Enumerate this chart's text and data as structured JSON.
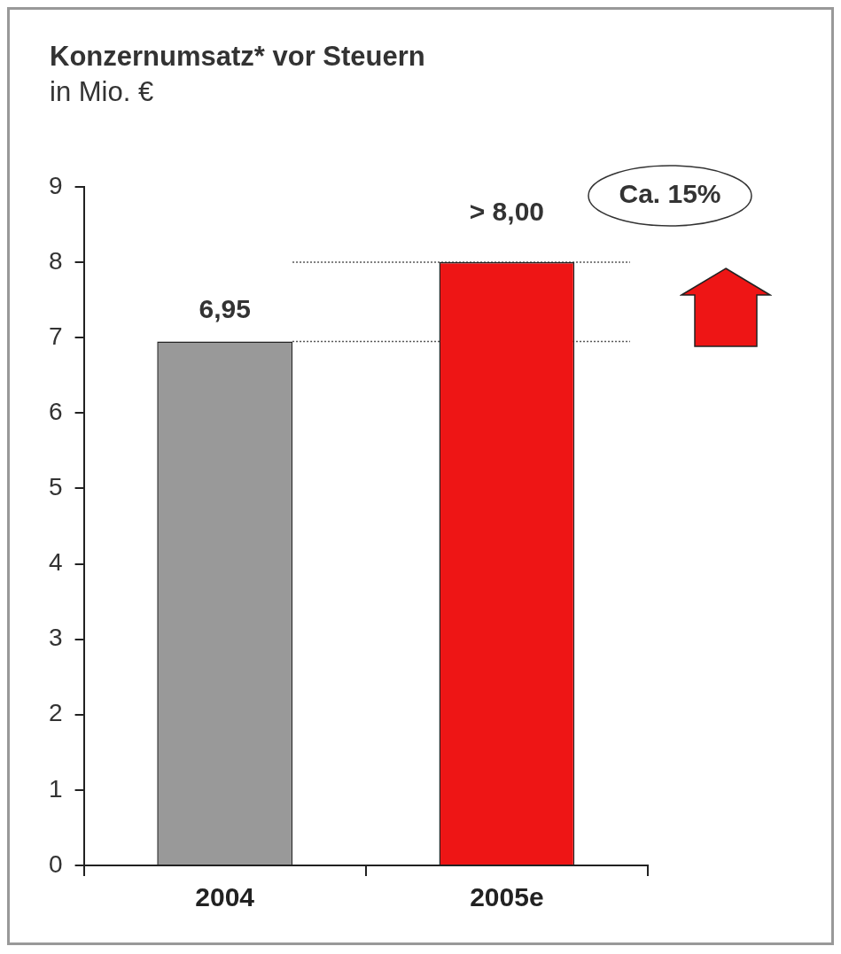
{
  "chart_data": {
    "type": "bar",
    "title": "Konzernumsatz* vor Steuern",
    "subtitle": "in Mio. €",
    "categories": [
      "2004",
      "2005e"
    ],
    "values": [
      6.95,
      8.0
    ],
    "colors": [
      "#999999",
      "#ee1515"
    ],
    "value_labels": [
      "6,95",
      "> 8,00"
    ],
    "ylim": [
      0,
      9
    ],
    "yticks": [
      0,
      1,
      2,
      3,
      4,
      5,
      6,
      7,
      8,
      9
    ],
    "grid": false,
    "ref_lines": [
      {
        "axis": "y",
        "value": 6.95,
        "line_style": "dotted",
        "color": "#555555"
      },
      {
        "axis": "y",
        "value": 8,
        "line_style": "dotted",
        "color": "#555555"
      }
    ],
    "annotations": [
      "Ca. 15%"
    ]
  }
}
